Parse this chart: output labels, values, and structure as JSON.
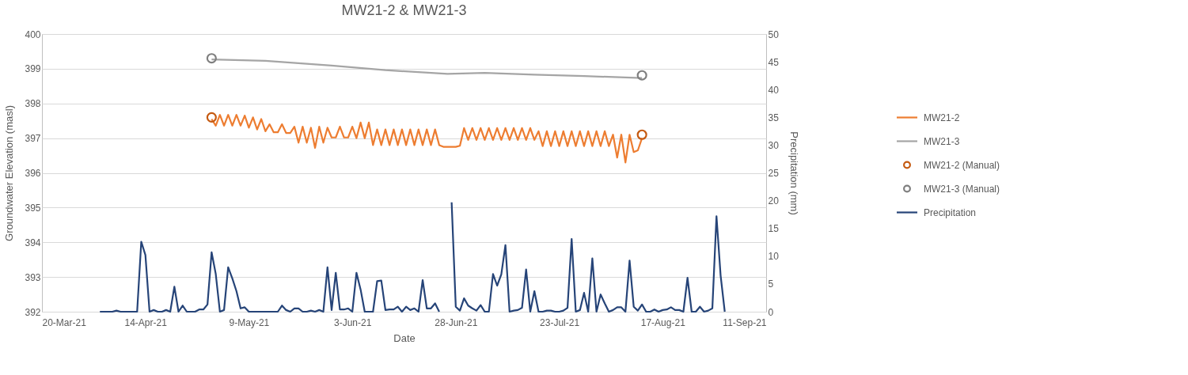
{
  "chart_data": {
    "type": "line",
    "title": "MW21-2 & MW21-3",
    "xlabel": "Date",
    "ylabel": "Groundwater Elevation (masl)",
    "y2label": "Precipitation (mm)",
    "x": [
      "2021-04-03",
      "2021-04-04",
      "2021-04-05",
      "2021-04-06",
      "2021-04-07",
      "2021-04-08",
      "2021-04-09",
      "2021-04-10",
      "2021-04-11",
      "2021-04-12",
      "2021-04-13",
      "2021-04-14",
      "2021-04-15",
      "2021-04-16",
      "2021-04-17",
      "2021-04-18",
      "2021-04-19",
      "2021-04-20",
      "2021-04-21",
      "2021-04-22",
      "2021-04-23",
      "2021-04-24",
      "2021-04-25",
      "2021-04-26",
      "2021-04-27",
      "2021-04-28",
      "2021-04-29",
      "2021-04-30",
      "2021-05-01",
      "2021-05-02",
      "2021-05-03",
      "2021-05-04",
      "2021-05-05",
      "2021-05-06",
      "2021-05-07",
      "2021-05-08",
      "2021-05-09",
      "2021-05-10",
      "2021-05-11",
      "2021-05-12",
      "2021-05-13",
      "2021-05-14",
      "2021-05-15",
      "2021-05-16",
      "2021-05-17",
      "2021-05-18",
      "2021-05-19",
      "2021-05-20",
      "2021-05-21",
      "2021-05-22",
      "2021-05-23",
      "2021-05-24",
      "2021-05-25",
      "2021-05-26",
      "2021-05-27",
      "2021-05-28",
      "2021-05-29",
      "2021-05-30",
      "2021-05-31",
      "2021-06-01",
      "2021-06-02",
      "2021-06-03",
      "2021-06-04",
      "2021-06-05",
      "2021-06-06",
      "2021-06-07",
      "2021-06-08",
      "2021-06-09",
      "2021-06-10",
      "2021-06-11",
      "2021-06-12",
      "2021-06-13",
      "2021-06-14",
      "2021-06-15",
      "2021-06-16",
      "2021-06-17",
      "2021-06-18",
      "2021-06-19",
      "2021-06-20",
      "2021-06-21",
      "2021-06-22",
      "2021-06-23",
      "2021-06-24",
      "2021-06-25",
      "2021-06-26",
      "2021-06-27",
      "2021-06-28",
      "2021-06-29",
      "2021-06-30",
      "2021-07-01",
      "2021-07-02",
      "2021-07-03",
      "2021-07-04",
      "2021-07-05",
      "2021-07-06",
      "2021-07-07",
      "2021-07-08",
      "2021-07-09",
      "2021-07-10",
      "2021-07-11",
      "2021-07-12",
      "2021-07-13",
      "2021-07-14",
      "2021-07-15",
      "2021-07-16",
      "2021-07-17",
      "2021-07-18",
      "2021-07-19",
      "2021-07-20",
      "2021-07-21",
      "2021-07-22",
      "2021-07-23",
      "2021-07-24",
      "2021-07-25",
      "2021-07-26",
      "2021-07-27",
      "2021-07-28",
      "2021-07-29",
      "2021-07-30",
      "2021-07-31",
      "2021-08-01",
      "2021-08-02",
      "2021-08-03",
      "2021-08-04",
      "2021-08-05",
      "2021-08-06",
      "2021-08-07",
      "2021-08-08",
      "2021-08-09",
      "2021-08-10",
      "2021-08-11",
      "2021-08-12",
      "2021-08-13",
      "2021-08-14",
      "2021-08-15",
      "2021-08-16",
      "2021-08-17",
      "2021-08-18",
      "2021-08-19",
      "2021-08-20",
      "2021-08-21",
      "2021-08-22",
      "2021-08-23",
      "2021-08-24",
      "2021-08-25",
      "2021-08-26",
      "2021-08-27",
      "2021-08-28",
      "2021-08-29",
      "2021-08-30",
      "2021-08-31",
      "2021-09-01"
    ],
    "series": [
      {
        "name": "MW21-2",
        "color": "#ed7d31",
        "values": [
          null,
          null,
          null,
          null,
          null,
          null,
          null,
          null,
          null,
          null,
          null,
          null,
          null,
          null,
          null,
          null,
          null,
          null,
          null,
          null,
          null,
          null,
          null,
          null,
          null,
          null,
          null,
          397.55,
          397.36,
          397.67,
          397.36,
          397.67,
          397.36,
          397.67,
          397.36,
          397.65,
          397.3,
          397.6,
          397.25,
          397.55,
          397.2,
          397.4,
          397.17,
          397.17,
          397.4,
          397.15,
          397.15,
          397.33,
          396.87,
          397.33,
          396.87,
          397.3,
          396.72,
          397.33,
          396.87,
          397.3,
          397.02,
          397.02,
          397.33,
          397.02,
          397.02,
          397.33,
          397.0,
          397.45,
          397.0,
          397.45,
          396.8,
          397.25,
          396.8,
          397.25,
          396.8,
          397.25,
          396.8,
          397.25,
          396.8,
          397.25,
          396.8,
          397.25,
          396.8,
          397.25,
          396.8,
          397.25,
          396.8,
          396.75,
          396.75,
          396.75,
          396.75,
          396.78,
          397.29,
          396.95,
          397.29,
          396.95,
          397.29,
          396.95,
          397.29,
          396.95,
          397.29,
          396.95,
          397.29,
          396.95,
          397.29,
          396.95,
          397.29,
          396.95,
          397.29,
          396.95,
          397.2,
          396.77,
          397.2,
          396.77,
          397.2,
          396.77,
          397.2,
          396.77,
          397.2,
          396.77,
          397.2,
          396.77,
          397.2,
          396.77,
          397.2,
          396.77,
          397.2,
          396.77,
          397.1,
          396.44,
          397.1,
          396.3,
          397.1,
          396.6,
          396.65,
          397.0,
          null,
          null,
          null,
          null,
          null,
          null,
          null,
          null,
          null,
          null,
          null,
          null,
          null,
          null,
          null,
          null,
          null,
          null,
          null,
          null
        ]
      },
      {
        "name": "MW21-3",
        "color": "#a5a5a5",
        "x": [
          "2021-04-30",
          "2021-05-13",
          "2021-05-29",
          "2021-06-11",
          "2021-06-26",
          "2021-07-05",
          "2021-07-17",
          "2021-07-29",
          "2021-08-12"
        ],
        "values": [
          399.27,
          399.23,
          399.09,
          398.96,
          398.85,
          398.88,
          398.83,
          398.79,
          398.73
        ]
      },
      {
        "name": "MW21-2 (Manual)",
        "type": "scatter",
        "marker": "circle",
        "color": "#c55a11",
        "x": [
          "2021-04-30",
          "2021-08-12"
        ],
        "values": [
          397.6,
          397.1
        ]
      },
      {
        "name": "MW21-3 (Manual)",
        "type": "scatter",
        "marker": "circle",
        "color": "#7f7f7f",
        "x": [
          "2021-04-30",
          "2021-08-12"
        ],
        "values": [
          399.3,
          398.81
        ]
      },
      {
        "name": "Precipitation",
        "color": "#264478",
        "axis": "y2",
        "values": [
          0,
          0,
          0,
          0,
          0.2,
          0,
          0,
          0,
          0,
          0,
          12.6,
          10.2,
          0,
          0.3,
          0,
          0,
          0.3,
          0,
          4.5,
          0,
          1.1,
          0,
          0,
          0,
          0.4,
          0.4,
          1.3,
          10.7,
          6.8,
          0,
          0.3,
          8.0,
          6.0,
          3.7,
          0.6,
          0.8,
          0,
          0,
          0,
          0,
          0,
          0,
          0,
          0,
          1.1,
          0.3,
          0,
          0.6,
          0.6,
          0,
          0,
          0.2,
          0,
          0.3,
          0,
          8.0,
          0.3,
          7.0,
          0.4,
          0.4,
          0.6,
          0,
          7.0,
          4.0,
          0,
          0,
          0,
          5.5,
          5.6,
          0.3,
          0.4,
          0.4,
          0.9,
          0,
          0.9,
          0.3,
          0.6,
          0,
          5.7,
          0.6,
          0.6,
          1.5,
          0,
          null,
          null,
          19.7,
          0.9,
          0.2,
          2.4,
          1.1,
          0.6,
          0.2,
          1.2,
          0,
          0,
          6.8,
          4.7,
          6.7,
          12.0,
          0,
          0.2,
          0.3,
          0.7,
          7.6,
          0,
          3.7,
          0,
          0,
          0.2,
          0.2,
          0,
          0,
          0.2,
          0.7,
          13.1,
          0,
          0.3,
          3.4,
          0,
          9.6,
          0,
          3.1,
          1.5,
          0,
          0.3,
          0.8,
          0.8,
          0,
          9.2,
          0.9,
          0.2,
          1.3,
          0,
          0,
          0.4,
          0,
          0.3,
          0.4,
          0.8,
          0.3,
          0.3,
          0,
          6.1,
          0,
          0,
          0.9,
          0,
          0.2,
          0.6,
          17.2,
          6.5,
          0
        ]
      }
    ],
    "xlim": [
      "2021-03-20",
      "2021-09-11"
    ],
    "xticks": [
      {
        "value": "2021-03-20",
        "label": "20-Mar-21"
      },
      {
        "value": "2021-04-14",
        "label": "14-Apr-21"
      },
      {
        "value": "2021-05-09",
        "label": "9-May-21"
      },
      {
        "value": "2021-06-03",
        "label": "3-Jun-21"
      },
      {
        "value": "2021-06-28",
        "label": "28-Jun-21"
      },
      {
        "value": "2021-07-23",
        "label": "23-Jul-21"
      },
      {
        "value": "2021-08-17",
        "label": "17-Aug-21"
      },
      {
        "value": "2021-09-11",
        "label": "11-Sep-21"
      }
    ],
    "ylim": [
      392,
      400
    ],
    "yticks": [
      392,
      393,
      394,
      395,
      396,
      397,
      398,
      399,
      400
    ],
    "y2lim": [
      0,
      50
    ],
    "y2ticks": [
      0,
      5,
      10,
      15,
      20,
      25,
      30,
      35,
      40,
      45,
      50
    ],
    "grid": "y",
    "legend": "right",
    "line_style": "solid"
  }
}
